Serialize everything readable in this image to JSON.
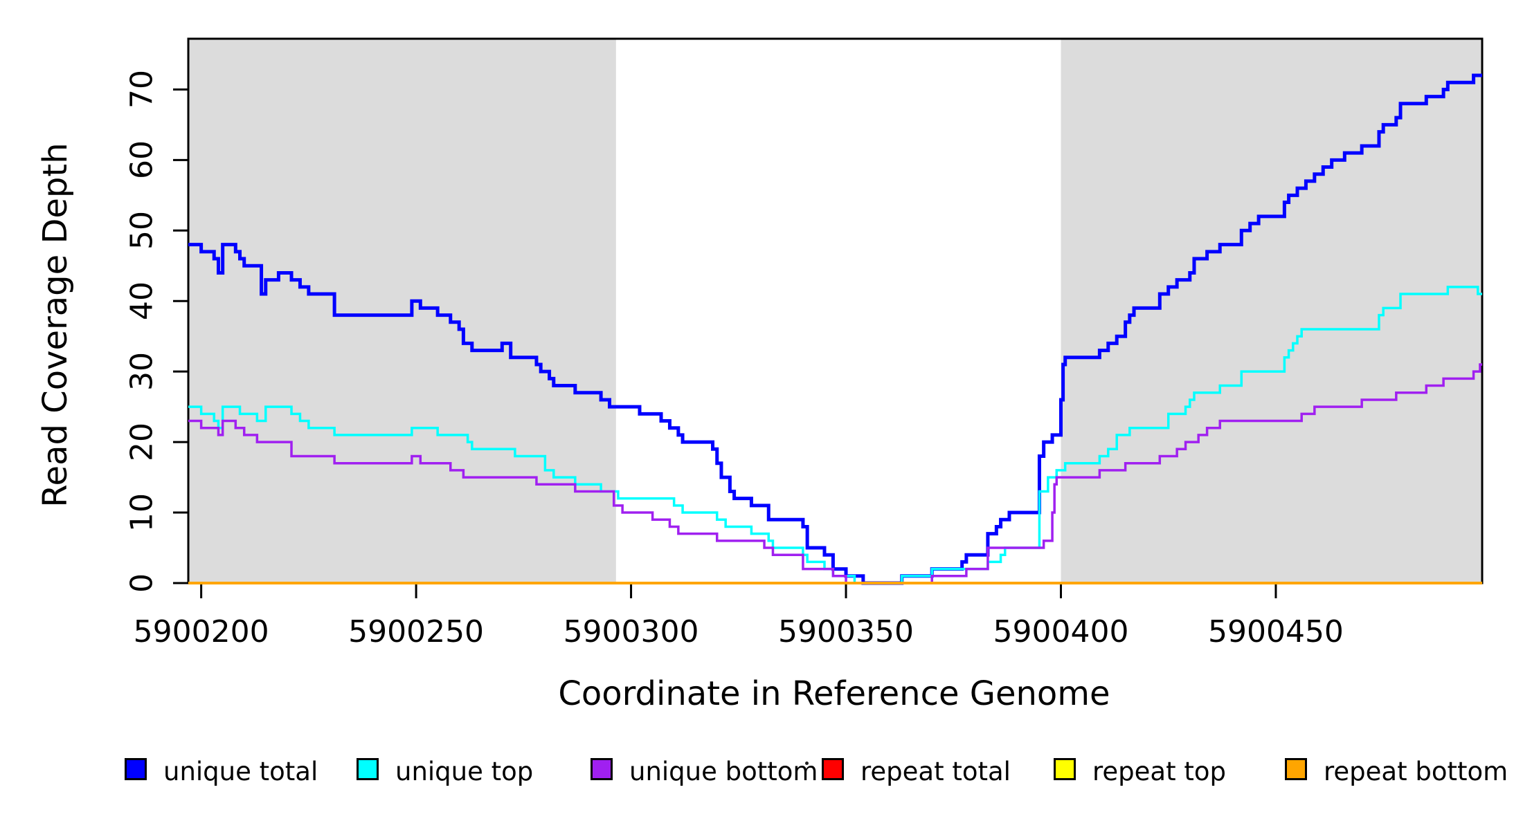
{
  "chart_data": {
    "type": "step-line",
    "title": "",
    "xlabel": "Coordinate in Reference Genome",
    "ylabel": "Read Coverage Depth",
    "xlim": [
      5900197,
      5900498
    ],
    "ylim": [
      0,
      77.2
    ],
    "x_ticks": [
      5900200,
      5900250,
      5900300,
      5900350,
      5900400,
      5900450
    ],
    "y_ticks": [
      0,
      10,
      20,
      30,
      40,
      50,
      60,
      70
    ],
    "grid": false,
    "legend_position": "bottom",
    "background_color": "#ffffff",
    "shaded_band_color": "#dcdcdc",
    "shaded_regions": [
      {
        "from": 5900197,
        "to": 5900296.5
      },
      {
        "from": 5900400,
        "to": 5900498
      }
    ],
    "series": [
      {
        "name": "unique total",
        "color": "#0000ff",
        "line_width": 5,
        "points": [
          [
            5900197,
            48
          ],
          [
            5900200,
            47
          ],
          [
            5900203,
            46
          ],
          [
            5900204,
            44
          ],
          [
            5900205,
            48
          ],
          [
            5900208,
            47
          ],
          [
            5900209,
            46
          ],
          [
            5900210,
            45
          ],
          [
            5900214,
            41
          ],
          [
            5900215,
            43
          ],
          [
            5900218,
            44
          ],
          [
            5900221,
            43
          ],
          [
            5900223,
            42
          ],
          [
            5900225,
            41
          ],
          [
            5900231,
            38
          ],
          [
            5900249,
            40
          ],
          [
            5900251,
            39
          ],
          [
            5900255,
            38
          ],
          [
            5900258,
            37
          ],
          [
            5900260,
            36
          ],
          [
            5900261,
            34
          ],
          [
            5900263,
            33
          ],
          [
            5900270,
            34
          ],
          [
            5900272,
            32
          ],
          [
            5900278,
            31
          ],
          [
            5900279,
            30
          ],
          [
            5900281,
            29
          ],
          [
            5900282,
            28
          ],
          [
            5900287,
            27
          ],
          [
            5900293,
            26
          ],
          [
            5900295,
            25
          ],
          [
            5900302,
            24
          ],
          [
            5900307,
            23
          ],
          [
            5900309,
            22
          ],
          [
            5900311,
            21
          ],
          [
            5900312,
            20
          ],
          [
            5900319,
            19
          ],
          [
            5900320,
            17
          ],
          [
            5900321,
            15
          ],
          [
            5900323,
            13
          ],
          [
            5900324,
            12
          ],
          [
            5900328,
            11
          ],
          [
            5900332,
            9
          ],
          [
            5900340,
            8
          ],
          [
            5900341,
            5
          ],
          [
            5900345,
            4
          ],
          [
            5900347,
            2
          ],
          [
            5900350,
            1
          ],
          [
            5900354,
            0
          ],
          [
            5900363,
            1
          ],
          [
            5900370,
            2
          ],
          [
            5900377,
            3
          ],
          [
            5900378,
            4
          ],
          [
            5900383,
            7
          ],
          [
            5900385,
            8
          ],
          [
            5900386,
            9
          ],
          [
            5900388,
            10
          ],
          [
            5900395,
            18
          ],
          [
            5900396,
            20
          ],
          [
            5900398,
            21
          ],
          [
            5900400,
            26
          ],
          [
            5900400.5,
            31
          ],
          [
            5900401,
            32
          ],
          [
            5900409,
            33
          ],
          [
            5900411,
            34
          ],
          [
            5900413,
            35
          ],
          [
            5900415,
            37
          ],
          [
            5900416,
            38
          ],
          [
            5900417,
            39
          ],
          [
            5900423,
            41
          ],
          [
            5900425,
            42
          ],
          [
            5900427,
            43
          ],
          [
            5900430,
            44
          ],
          [
            5900431,
            46
          ],
          [
            5900434,
            47
          ],
          [
            5900437,
            48
          ],
          [
            5900442,
            50
          ],
          [
            5900444,
            51
          ],
          [
            5900446,
            52
          ],
          [
            5900452,
            54
          ],
          [
            5900453,
            55
          ],
          [
            5900455,
            56
          ],
          [
            5900457,
            57
          ],
          [
            5900459,
            58
          ],
          [
            5900461,
            59
          ],
          [
            5900463,
            60
          ],
          [
            5900466,
            61
          ],
          [
            5900470,
            62
          ],
          [
            5900474,
            64
          ],
          [
            5900475,
            65
          ],
          [
            5900478,
            66
          ],
          [
            5900479,
            68
          ],
          [
            5900485,
            69
          ],
          [
            5900489,
            70
          ],
          [
            5900490,
            71
          ],
          [
            5900496,
            72
          ]
        ]
      },
      {
        "name": "unique top",
        "color": "#00ffff",
        "line_width": 3.5,
        "points": [
          [
            5900197,
            25
          ],
          [
            5900200,
            24
          ],
          [
            5900203,
            23
          ],
          [
            5900204,
            22
          ],
          [
            5900205,
            25
          ],
          [
            5900209,
            24
          ],
          [
            5900213,
            23
          ],
          [
            5900215,
            25
          ],
          [
            5900221,
            24
          ],
          [
            5900223,
            23
          ],
          [
            5900225,
            22
          ],
          [
            5900231,
            21
          ],
          [
            5900249,
            22
          ],
          [
            5900255,
            21
          ],
          [
            5900262,
            20
          ],
          [
            5900263,
            19
          ],
          [
            5900273,
            18
          ],
          [
            5900280,
            16
          ],
          [
            5900282,
            15
          ],
          [
            5900287,
            14
          ],
          [
            5900293,
            13
          ],
          [
            5900297,
            12
          ],
          [
            5900310,
            11
          ],
          [
            5900312,
            10
          ],
          [
            5900320,
            9
          ],
          [
            5900322,
            8
          ],
          [
            5900328,
            7
          ],
          [
            5900332,
            6
          ],
          [
            5900333,
            5
          ],
          [
            5900340,
            4
          ],
          [
            5900341,
            3
          ],
          [
            5900345,
            2
          ],
          [
            5900347,
            1
          ],
          [
            5900352,
            0
          ],
          [
            5900363,
            1
          ],
          [
            5900370,
            2
          ],
          [
            5900383,
            3
          ],
          [
            5900386,
            4
          ],
          [
            5900387,
            5
          ],
          [
            5900395,
            13
          ],
          [
            5900397,
            15
          ],
          [
            5900399,
            16
          ],
          [
            5900401,
            17
          ],
          [
            5900409,
            18
          ],
          [
            5900411,
            19
          ],
          [
            5900413,
            21
          ],
          [
            5900416,
            22
          ],
          [
            5900425,
            24
          ],
          [
            5900429,
            25
          ],
          [
            5900430,
            26
          ],
          [
            5900431,
            27
          ],
          [
            5900437,
            28
          ],
          [
            5900442,
            30
          ],
          [
            5900452,
            32
          ],
          [
            5900453,
            33
          ],
          [
            5900454,
            34
          ],
          [
            5900455,
            35
          ],
          [
            5900456,
            36
          ],
          [
            5900474,
            38
          ],
          [
            5900475,
            39
          ],
          [
            5900479,
            41
          ],
          [
            5900490,
            42
          ],
          [
            5900497,
            41
          ]
        ]
      },
      {
        "name": "unique bottom",
        "color": "#a020f0",
        "line_width": 3.5,
        "points": [
          [
            5900197,
            23
          ],
          [
            5900200,
            22
          ],
          [
            5900204,
            21
          ],
          [
            5900205,
            23
          ],
          [
            5900208,
            22
          ],
          [
            5900210,
            21
          ],
          [
            5900213,
            20
          ],
          [
            5900221,
            18
          ],
          [
            5900231,
            17
          ],
          [
            5900249,
            18
          ],
          [
            5900251,
            17
          ],
          [
            5900258,
            16
          ],
          [
            5900261,
            15
          ],
          [
            5900278,
            14
          ],
          [
            5900287,
            13
          ],
          [
            5900296,
            11
          ],
          [
            5900298,
            10
          ],
          [
            5900305,
            9
          ],
          [
            5900309,
            8
          ],
          [
            5900311,
            7
          ],
          [
            5900320,
            6
          ],
          [
            5900331,
            5
          ],
          [
            5900333,
            4
          ],
          [
            5900340,
            2
          ],
          [
            5900347,
            1
          ],
          [
            5900350,
            0
          ],
          [
            5900370,
            1
          ],
          [
            5900378,
            2
          ],
          [
            5900383,
            5
          ],
          [
            5900396,
            6
          ],
          [
            5900398,
            10
          ],
          [
            5900398.5,
            14
          ],
          [
            5900399,
            15
          ],
          [
            5900409,
            16
          ],
          [
            5900415,
            17
          ],
          [
            5900423,
            18
          ],
          [
            5900427,
            19
          ],
          [
            5900429,
            20
          ],
          [
            5900432,
            21
          ],
          [
            5900434,
            22
          ],
          [
            5900437,
            23
          ],
          [
            5900456,
            24
          ],
          [
            5900459,
            25
          ],
          [
            5900470,
            26
          ],
          [
            5900478,
            27
          ],
          [
            5900485,
            28
          ],
          [
            5900489,
            29
          ],
          [
            5900496,
            30
          ],
          [
            5900497.5,
            31
          ]
        ]
      },
      {
        "name": "repeat total",
        "color": "#ff0000",
        "line_width": 3,
        "points": [
          [
            5900197,
            0
          ]
        ]
      },
      {
        "name": "repeat top",
        "color": "#ffff00",
        "line_width": 3,
        "points": [
          [
            5900197,
            0
          ]
        ]
      },
      {
        "name": "repeat bottom",
        "color": "#ffa500",
        "line_width": 4,
        "points": [
          [
            5900197,
            0
          ]
        ]
      }
    ]
  }
}
